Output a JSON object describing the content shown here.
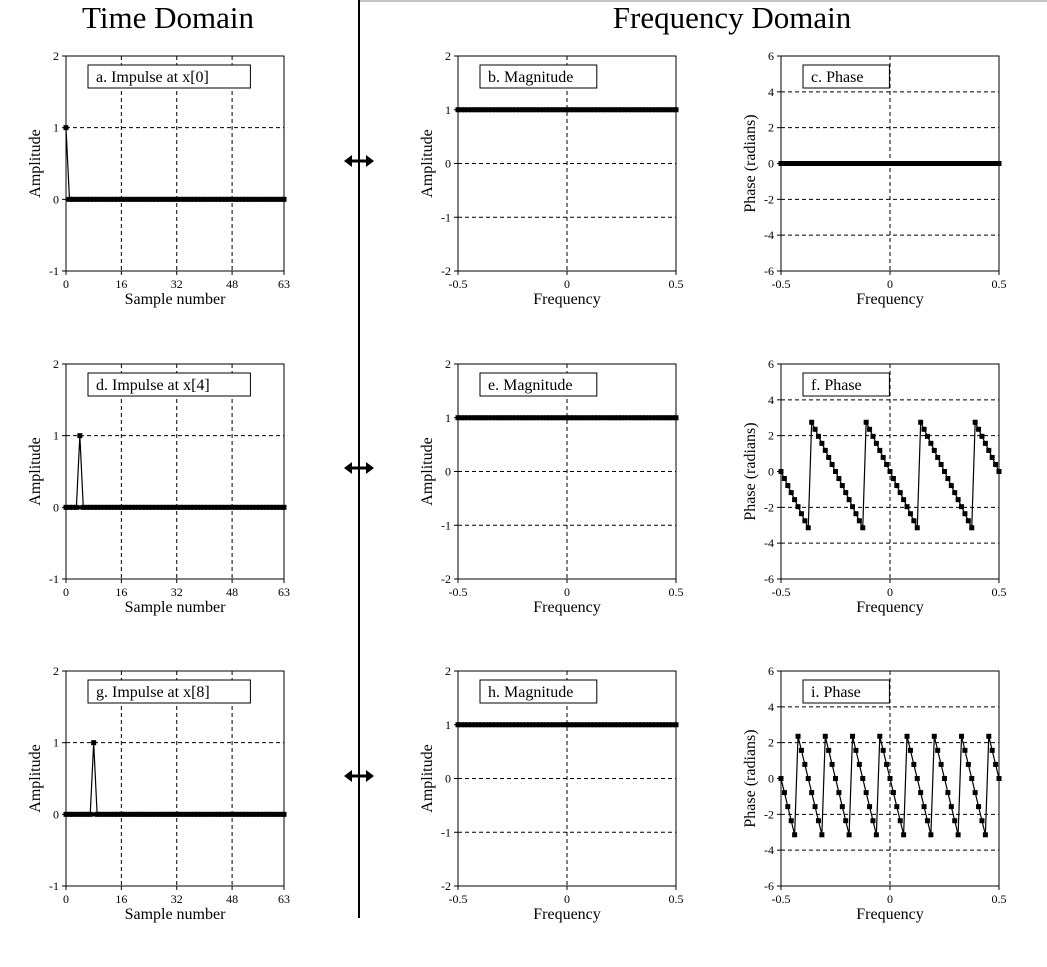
{
  "headers": {
    "time_domain": "Time Domain",
    "frequency_domain": "Frequency Domain"
  },
  "colors": {
    "line": "#000000",
    "grid": "#000000",
    "background": "#ffffff"
  },
  "chart_data": [
    {
      "id": "a",
      "type": "line",
      "panel_label": "a.  Impulse at x[0]",
      "xlabel": "Sample number",
      "ylabel": "Amplitude",
      "xlim": [
        0,
        63
      ],
      "ylim": [
        -1,
        2
      ],
      "xticks": [
        0,
        16,
        32,
        48,
        63
      ],
      "yticks": [
        -1,
        0,
        1,
        2
      ],
      "xgrid": [
        16,
        32,
        48
      ],
      "ygrid": [
        1
      ],
      "series": [
        {
          "kind": "impulse",
          "n": 64,
          "index": 0,
          "value": 1
        }
      ]
    },
    {
      "id": "b",
      "type": "line",
      "panel_label": "b.  Magnitude",
      "xlabel": "Frequency",
      "ylabel": "Amplitude",
      "xlim": [
        -0.5,
        0.5
      ],
      "ylim": [
        -2,
        2
      ],
      "xticks": [
        -0.5,
        0,
        0.5
      ],
      "yticks": [
        -2,
        -1,
        0,
        1,
        2
      ],
      "xgrid": [
        0
      ],
      "ygrid": [
        0,
        -1
      ],
      "series": [
        {
          "kind": "constant",
          "n": 64,
          "value": 1
        }
      ]
    },
    {
      "id": "c",
      "type": "line",
      "panel_label": "c.  Phase",
      "xlabel": "Frequency",
      "ylabel": "Phase (radians)",
      "xlim": [
        -0.5,
        0.5
      ],
      "ylim": [
        -6,
        6
      ],
      "xticks": [
        -0.5,
        0,
        0.5
      ],
      "yticks": [
        -6,
        -4,
        -2,
        0,
        2,
        4,
        6
      ],
      "xgrid": [
        0
      ],
      "ygrid": [
        4,
        2,
        -2,
        -4
      ],
      "series": [
        {
          "kind": "phase",
          "n": 64,
          "shift": 0
        }
      ]
    },
    {
      "id": "d",
      "type": "line",
      "panel_label": "d.  Impulse at x[4]",
      "xlabel": "Sample number",
      "ylabel": "Amplitude",
      "xlim": [
        0,
        63
      ],
      "ylim": [
        -1,
        2
      ],
      "xticks": [
        0,
        16,
        32,
        48,
        63
      ],
      "yticks": [
        -1,
        0,
        1,
        2
      ],
      "xgrid": [
        16,
        32,
        48
      ],
      "ygrid": [
        1
      ],
      "series": [
        {
          "kind": "impulse",
          "n": 64,
          "index": 4,
          "value": 1
        }
      ]
    },
    {
      "id": "e",
      "type": "line",
      "panel_label": "e.  Magnitude",
      "xlabel": "Frequency",
      "ylabel": "Amplitude",
      "xlim": [
        -0.5,
        0.5
      ],
      "ylim": [
        -2,
        2
      ],
      "xticks": [
        -0.5,
        0,
        0.5
      ],
      "yticks": [
        -2,
        -1,
        0,
        1,
        2
      ],
      "xgrid": [
        0
      ],
      "ygrid": [
        0,
        -1
      ],
      "series": [
        {
          "kind": "constant",
          "n": 64,
          "value": 1
        }
      ]
    },
    {
      "id": "f",
      "type": "line",
      "panel_label": "f.  Phase",
      "xlabel": "Frequency",
      "ylabel": "Phase (radians)",
      "xlim": [
        -0.5,
        0.5
      ],
      "ylim": [
        -6,
        6
      ],
      "xticks": [
        -0.5,
        0,
        0.5
      ],
      "yticks": [
        -6,
        -4,
        -2,
        0,
        2,
        4,
        6
      ],
      "xgrid": [
        0
      ],
      "ygrid": [
        4,
        2,
        -2,
        -4
      ],
      "series": [
        {
          "kind": "phase",
          "n": 64,
          "shift": 4
        }
      ]
    },
    {
      "id": "g",
      "type": "line",
      "panel_label": "g.  Impulse at x[8]",
      "xlabel": "Sample number",
      "ylabel": "Amplitude",
      "xlim": [
        0,
        63
      ],
      "ylim": [
        -1,
        2
      ],
      "xticks": [
        0,
        16,
        32,
        48,
        63
      ],
      "yticks": [
        -1,
        0,
        1,
        2
      ],
      "xgrid": [
        16,
        32,
        48
      ],
      "ygrid": [
        1
      ],
      "series": [
        {
          "kind": "impulse",
          "n": 64,
          "index": 8,
          "value": 1
        }
      ]
    },
    {
      "id": "h",
      "type": "line",
      "panel_label": "h.  Magnitude",
      "xlabel": "Frequency",
      "ylabel": "Amplitude",
      "xlim": [
        -0.5,
        0.5
      ],
      "ylim": [
        -2,
        2
      ],
      "xticks": [
        -0.5,
        0,
        0.5
      ],
      "yticks": [
        -2,
        -1,
        0,
        1,
        2
      ],
      "xgrid": [
        0
      ],
      "ygrid": [
        0,
        -1
      ],
      "series": [
        {
          "kind": "constant",
          "n": 64,
          "value": 1
        }
      ]
    },
    {
      "id": "i",
      "type": "line",
      "panel_label": "i.  Phase",
      "xlabel": "Frequency",
      "ylabel": "Phase (radians)",
      "xlim": [
        -0.5,
        0.5
      ],
      "ylim": [
        -6,
        6
      ],
      "xticks": [
        -0.5,
        0,
        0.5
      ],
      "yticks": [
        -6,
        -4,
        -2,
        0,
        2,
        4,
        6
      ],
      "xgrid": [
        0
      ],
      "ygrid": [
        4,
        2,
        -2,
        -4
      ],
      "series": [
        {
          "kind": "phase",
          "n": 64,
          "shift": 8
        }
      ]
    }
  ]
}
